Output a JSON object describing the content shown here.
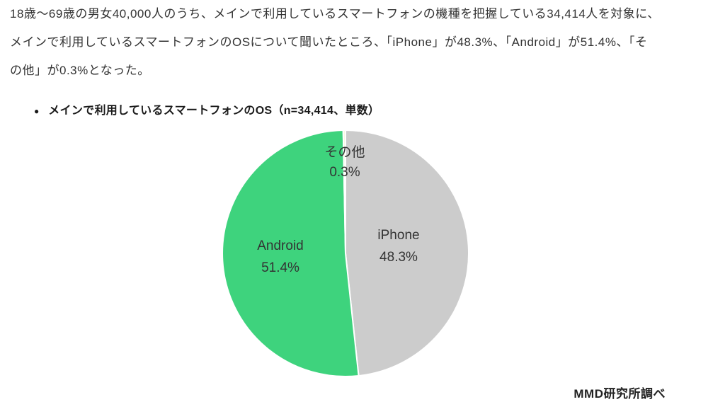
{
  "report": {
    "paragraph_lines": [
      "18歳〜69歳の男女40,000人のうち、メインで利用しているスマートフォンの機種を把握している34,414人を対象に、",
      "メインで利用しているスマートフォンのOSについて聞いたところ、「iPhone」が48.3%、「Android」が51.4%、「そ",
      "の他」が0.3%となった。"
    ],
    "source": "MMD研究所調べ"
  },
  "chart": {
    "bullet": "●",
    "title": "メインで利用しているスマートフォンのOS（n=34,414、単数）"
  },
  "chart_data": {
    "type": "pie",
    "title": "メインで利用しているスマートフォンのOS（n=34,414、単数）",
    "n": 34414,
    "unit": "%",
    "start_angle_deg": 0,
    "direction": "clockwise",
    "legend": "none",
    "labels_inside": true,
    "slices": [
      {
        "label": "iPhone",
        "value": 48.3,
        "display": "48.3%",
        "color": "#cccccc"
      },
      {
        "label": "Android",
        "value": 51.4,
        "display": "51.4%",
        "color": "#3ed37d"
      },
      {
        "label": "その他",
        "value": 0.3,
        "display": "0.3%",
        "color": "#faf7e3"
      }
    ]
  }
}
